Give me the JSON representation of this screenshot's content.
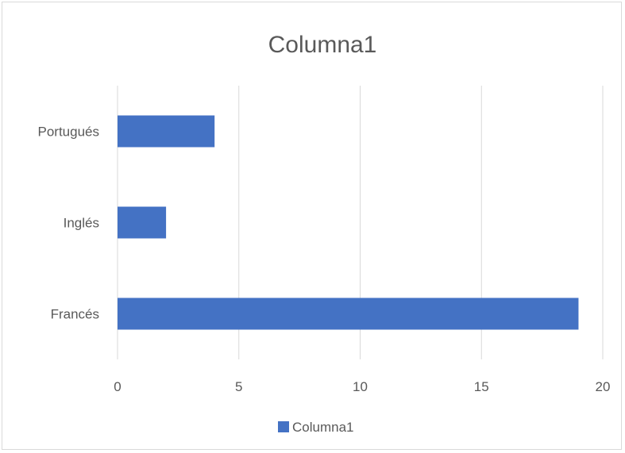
{
  "chart_data": {
    "type": "bar",
    "orientation": "horizontal",
    "title": "Columna1",
    "categories": [
      "Francés",
      "Inglés",
      "Portugués"
    ],
    "series": [
      {
        "name": "Columna1",
        "values": [
          19,
          2,
          4
        ],
        "color": "#4472c4"
      }
    ],
    "xlim": [
      0,
      20
    ],
    "x_ticks": [
      0,
      5,
      10,
      15,
      20
    ],
    "xlabel": "",
    "ylabel": "",
    "grid": true,
    "legend": "bottom"
  }
}
